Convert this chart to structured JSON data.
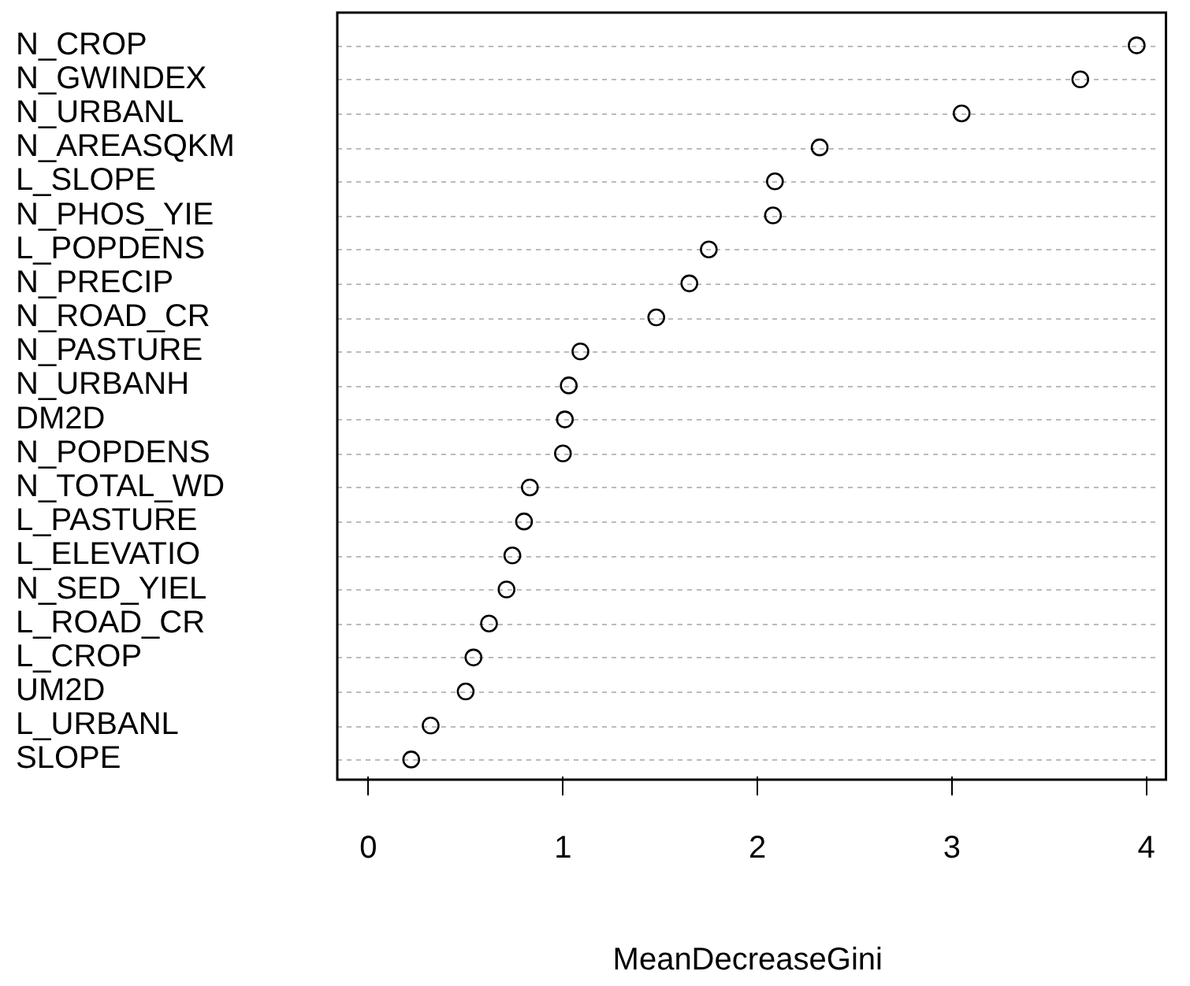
{
  "chart_data": {
    "type": "scatter",
    "orientation": "horizontal",
    "xlabel": "MeanDecreaseGini",
    "categories": [
      "N_CROP",
      "N_GWINDEX",
      "N_URBANL",
      "N_AREASQKM",
      "L_SLOPE",
      "N_PHOS_YIE",
      "L_POPDENS",
      "N_PRECIP",
      "N_ROAD_CR",
      "N_PASTURE",
      "N_URBANH",
      "DM2D",
      "N_POPDENS",
      "N_TOTAL_WD",
      "L_PASTURE",
      "L_ELEVATIO",
      "N_SED_YIEL",
      "L_ROAD_CR",
      "L_CROP",
      "UM2D",
      "L_URBANL",
      "SLOPE"
    ],
    "values": [
      3.95,
      3.66,
      3.05,
      2.32,
      2.09,
      2.08,
      1.75,
      1.65,
      1.48,
      1.09,
      1.03,
      1.01,
      1.0,
      0.83,
      0.8,
      0.74,
      0.71,
      0.62,
      0.54,
      0.5,
      0.32,
      0.22
    ],
    "color": "#000000",
    "marker": "circle",
    "grid": "y",
    "legend": false,
    "xlim": [
      -0.16,
      4.06
    ],
    "xticks": [
      0,
      1,
      2,
      3,
      4
    ]
  }
}
